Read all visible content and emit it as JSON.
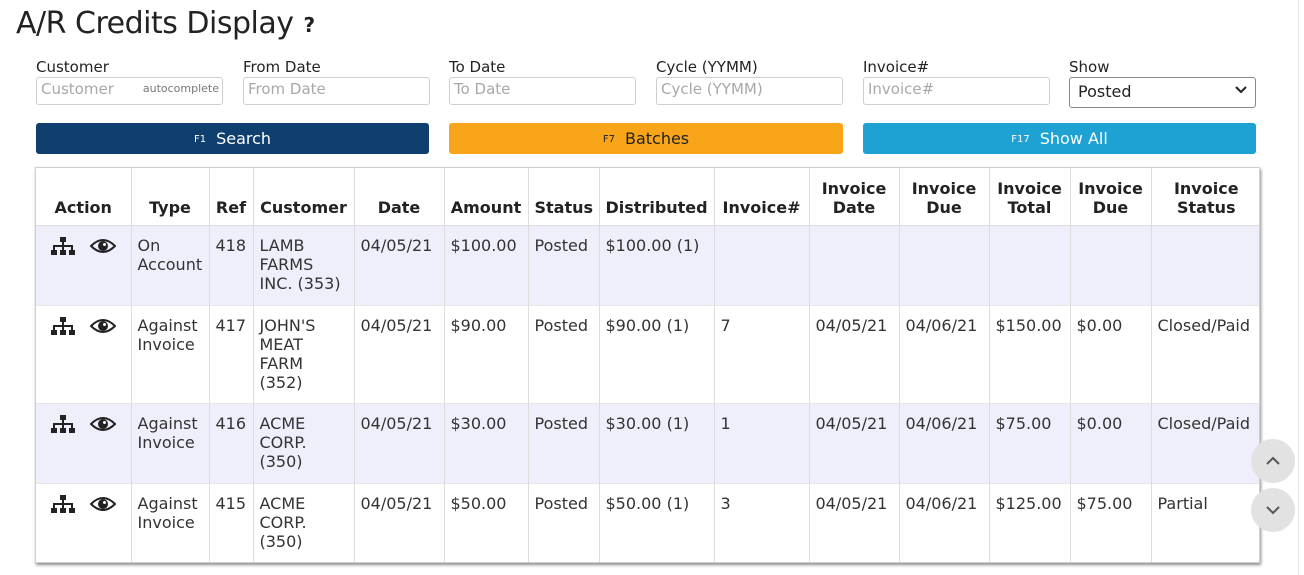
{
  "page": {
    "title": "A/R Credits Display",
    "help": "?"
  },
  "filters": {
    "customer": {
      "label": "Customer",
      "placeholder": "Customer",
      "hint": "autocomplete"
    },
    "from_date": {
      "label": "From Date",
      "placeholder": "From Date"
    },
    "to_date": {
      "label": "To Date",
      "placeholder": "To Date"
    },
    "cycle": {
      "label": "Cycle (YYMM)",
      "placeholder": "Cycle (YYMM)"
    },
    "invoice": {
      "label": "Invoice#",
      "placeholder": "Invoice#"
    },
    "show": {
      "label": "Show",
      "selected": "Posted"
    }
  },
  "buttons": {
    "search": {
      "fkey": "F1",
      "label": "Search",
      "color": "#0f3f6e"
    },
    "batches": {
      "fkey": "F7",
      "label": "Batches",
      "color": "#f8a51a"
    },
    "show_all": {
      "fkey": "F17",
      "label": "Show All",
      "color": "#1ea2d3"
    }
  },
  "table": {
    "headers": [
      "Action",
      "Type",
      "Ref",
      "Customer",
      "Date",
      "Amount",
      "Status",
      "Distributed",
      "Invoice#",
      "Invoice Date",
      "Invoice Due",
      "Invoice Total",
      "Invoice Due",
      "Invoice Status"
    ],
    "rows": [
      {
        "type": "On Account",
        "ref": "418",
        "customer": "LAMB FARMS INC. (353)",
        "date": "04/05/21",
        "amount": "$100.00",
        "status": "Posted",
        "distributed": "$100.00 (1)",
        "invoice_no": "",
        "invoice_date": "",
        "invoice_due_date": "",
        "invoice_total": "",
        "invoice_due": "",
        "invoice_status": ""
      },
      {
        "type": "Against Invoice",
        "ref": "417",
        "customer": "JOHN'S MEAT FARM (352)",
        "date": "04/05/21",
        "amount": "$90.00",
        "status": "Posted",
        "distributed": "$90.00 (1)",
        "invoice_no": "7",
        "invoice_date": "04/05/21",
        "invoice_due_date": "04/06/21",
        "invoice_total": "$150.00",
        "invoice_due": "$0.00",
        "invoice_status": "Closed/Paid"
      },
      {
        "type": "Against Invoice",
        "ref": "416",
        "customer": "ACME CORP. (350)",
        "date": "04/05/21",
        "amount": "$30.00",
        "status": "Posted",
        "distributed": "$30.00 (1)",
        "invoice_no": "1",
        "invoice_date": "04/05/21",
        "invoice_due_date": "04/06/21",
        "invoice_total": "$75.00",
        "invoice_due": "$0.00",
        "invoice_status": "Closed/Paid"
      },
      {
        "type": "Against Invoice",
        "ref": "415",
        "customer": "ACME CORP. (350)",
        "date": "04/05/21",
        "amount": "$50.00",
        "status": "Posted",
        "distributed": "$50.00 (1)",
        "invoice_no": "3",
        "invoice_date": "04/05/21",
        "invoice_due_date": "04/06/21",
        "invoice_total": "$125.00",
        "invoice_due": "$75.00",
        "invoice_status": "Partial"
      }
    ],
    "row_icons": [
      "hierarchy-icon",
      "eye-icon"
    ]
  },
  "scroll": {
    "up_icon": "chevron-up-icon",
    "down_icon": "chevron-down-icon"
  }
}
